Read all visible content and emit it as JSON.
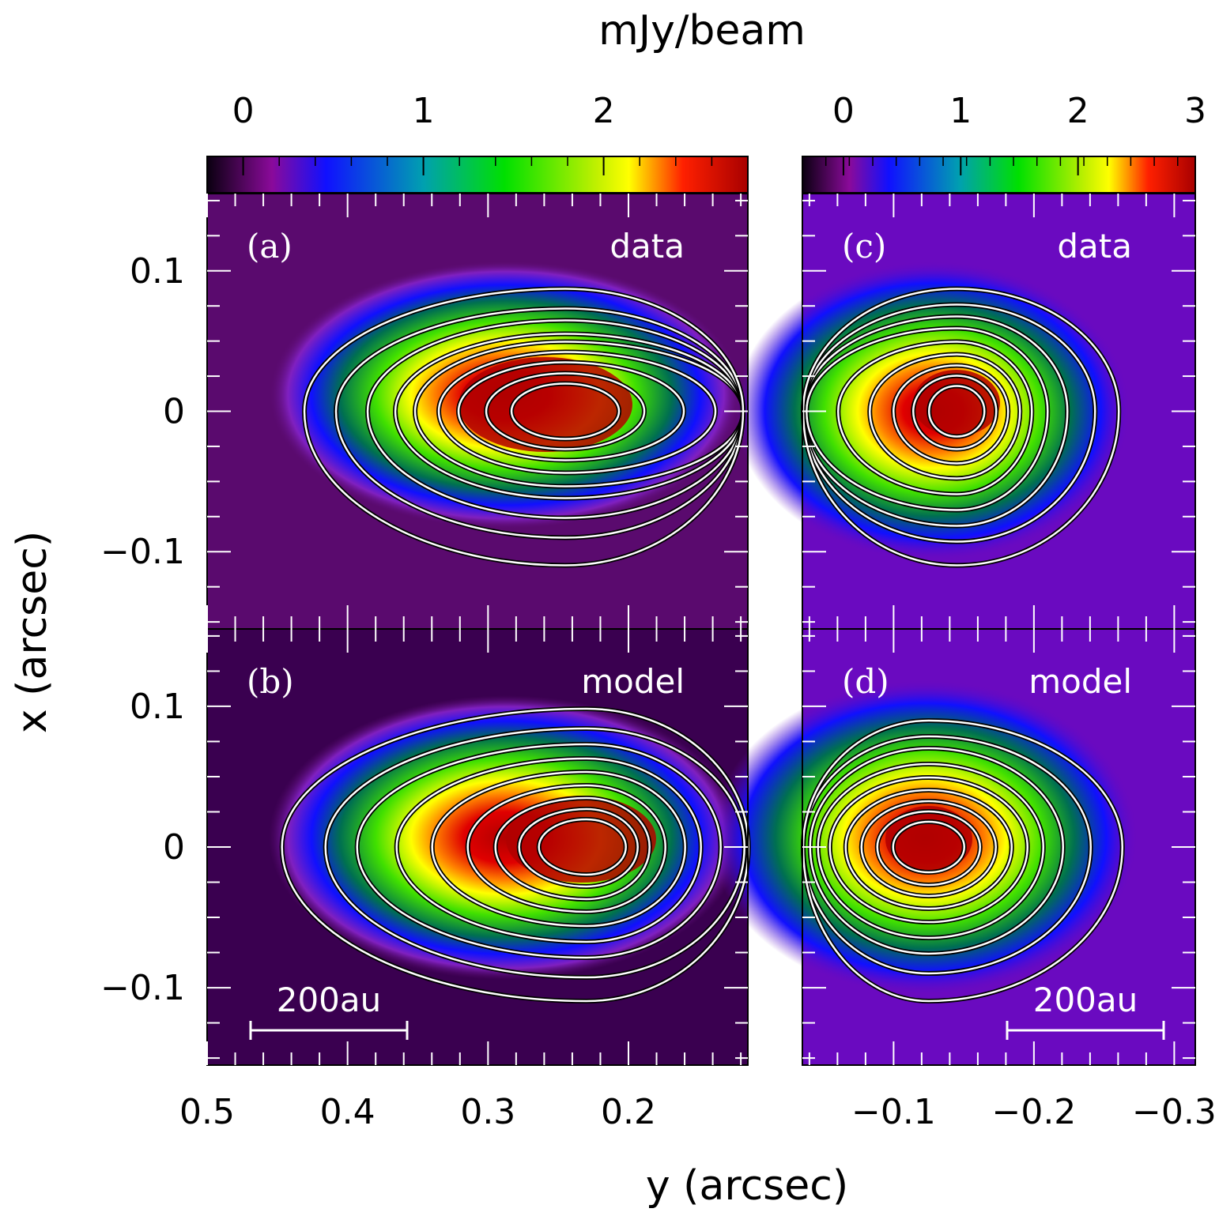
{
  "figure": {
    "colorbar_unit": "mJy/beam",
    "ylabel": "x (arcsec)",
    "xlabel": "y (arcsec)",
    "scalebar_label": "200au"
  },
  "chart_data": [
    {
      "type": "heatmap",
      "panel": "(a)",
      "tag": "data",
      "x_ticks": [
        0.5,
        0.4,
        0.3,
        0.2
      ],
      "x_range": [
        0.5,
        0.115
      ],
      "y_ticks": [
        0.1,
        0,
        -0.1
      ],
      "y_range": [
        -0.155,
        0.155
      ],
      "colorbar_ticks": [
        0,
        1,
        2
      ],
      "colorbar_range": [
        -0.2,
        2.8
      ],
      "peak": {
        "y": 0.245,
        "x": 0.0,
        "value": 2.8
      },
      "contours": true
    },
    {
      "type": "heatmap",
      "panel": "(b)",
      "tag": "model",
      "x_ticks": [
        0.5,
        0.4,
        0.3,
        0.2
      ],
      "x_range": [
        0.5,
        0.115
      ],
      "y_ticks": [
        0.1,
        0,
        -0.1
      ],
      "y_range": [
        -0.155,
        0.155
      ],
      "colorbar_ticks": [
        0,
        1,
        2
      ],
      "colorbar_range": [
        -0.2,
        2.8
      ],
      "peak": {
        "y": 0.23,
        "x": 0.0,
        "value": 2.8
      },
      "scalebar": "200au",
      "contours": true
    },
    {
      "type": "heatmap",
      "panel": "(c)",
      "tag": "data",
      "x_ticks": [
        -0.1,
        -0.2,
        -0.3
      ],
      "x_range": [
        -0.035,
        -0.315
      ],
      "y_ticks": [
        0.1,
        0,
        -0.1
      ],
      "y_range": [
        -0.155,
        0.155
      ],
      "colorbar_ticks": [
        0,
        1,
        2,
        3
      ],
      "colorbar_range": [
        -0.35,
        3.0
      ],
      "peak": {
        "y": -0.145,
        "x": 0.0,
        "value": 3.0
      },
      "contours": true
    },
    {
      "type": "heatmap",
      "panel": "(d)",
      "tag": "model",
      "x_ticks": [
        -0.1,
        -0.2,
        -0.3
      ],
      "x_range": [
        -0.035,
        -0.315
      ],
      "y_ticks": [
        0.1,
        0,
        -0.1
      ],
      "y_range": [
        -0.155,
        0.155
      ],
      "colorbar_ticks": [
        0,
        1,
        2,
        3
      ],
      "colorbar_range": [
        -0.35,
        3.0
      ],
      "peak": {
        "y": -0.125,
        "x": 0.0,
        "value": 3.0
      },
      "scalebar": "200au",
      "contours": true
    }
  ]
}
